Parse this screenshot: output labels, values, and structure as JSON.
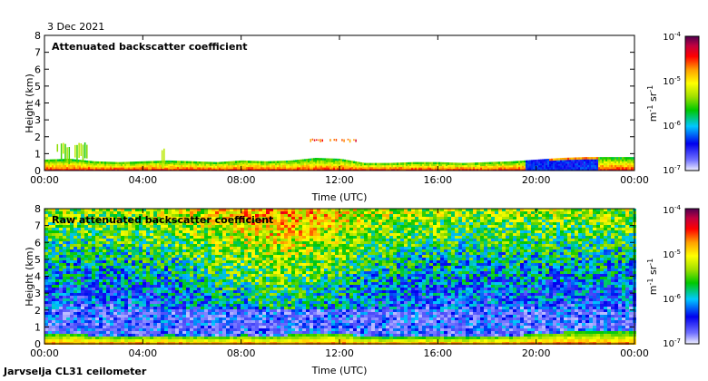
{
  "date_label": "3 Dec 2021",
  "footer_label": "Jarvselja CL31 ceilometer",
  "chart_data": [
    {
      "type": "heatmap",
      "title": "Attenuated backscatter coefficient",
      "xlabel": "Time (UTC)",
      "ylabel": "Height (km)",
      "xticks": [
        "00:00",
        "04:00",
        "08:00",
        "12:00",
        "16:00",
        "20:00",
        "00:00"
      ],
      "yticks": [
        "0",
        "1",
        "2",
        "3",
        "4",
        "5",
        "6",
        "7",
        "8"
      ],
      "xlim_hours": [
        0,
        24
      ],
      "ylim_km": [
        0,
        8
      ],
      "colorbar": {
        "scale": "log",
        "ticks": [
          {
            "base": "10",
            "exp": "-4"
          },
          {
            "base": "10",
            "exp": "-5"
          },
          {
            "base": "10",
            "exp": "-6"
          },
          {
            "base": "10",
            "exp": "-7"
          }
        ],
        "unit_base_1": "m",
        "unit_exp_1": "-1",
        "unit_base_2": " sr",
        "unit_exp_2": "-1",
        "range": [
          1e-07,
          0.0001
        ]
      },
      "boundary_layer_top_km": [
        [
          0,
          0.65
        ],
        [
          1,
          0.7
        ],
        [
          2,
          0.55
        ],
        [
          3,
          0.5
        ],
        [
          4,
          0.55
        ],
        [
          5,
          0.6
        ],
        [
          6,
          0.55
        ],
        [
          7,
          0.5
        ],
        [
          8,
          0.6
        ],
        [
          9,
          0.55
        ],
        [
          10,
          0.6
        ],
        [
          11,
          0.75
        ],
        [
          12,
          0.7
        ],
        [
          13,
          0.45
        ],
        [
          14,
          0.45
        ],
        [
          15,
          0.5
        ],
        [
          16,
          0.5
        ],
        [
          17,
          0.45
        ],
        [
          18,
          0.5
        ],
        [
          19,
          0.55
        ],
        [
          20,
          0.65
        ],
        [
          21,
          0.75
        ],
        [
          22,
          0.8
        ],
        [
          23,
          0.8
        ],
        [
          24,
          0.8
        ]
      ],
      "elevated_layers": [
        {
          "t_start": 0.5,
          "t_end": 1.8,
          "h_bottom_km": 0.6,
          "h_top_km": 1.7
        },
        {
          "t_start": 4.6,
          "t_end": 4.9,
          "h_bottom_km": 0.1,
          "h_top_km": 1.5
        },
        {
          "t_start": 10.8,
          "t_end": 11.5,
          "h_bottom_km": 1.7,
          "h_top_km": 1.9
        },
        {
          "t_start": 11.6,
          "t_end": 12.9,
          "h_bottom_km": 1.7,
          "h_top_km": 1.9
        }
      ]
    },
    {
      "type": "heatmap",
      "title": "Raw attenuated backscatter coefficient",
      "xlabel": "Time (UTC)",
      "ylabel": "Height (km)",
      "xticks": [
        "00:00",
        "04:00",
        "08:00",
        "12:00",
        "16:00",
        "20:00",
        "00:00"
      ],
      "yticks": [
        "0",
        "1",
        "2",
        "3",
        "4",
        "5",
        "6",
        "7",
        "8"
      ],
      "xlim_hours": [
        0,
        24
      ],
      "ylim_km": [
        0,
        8
      ],
      "colorbar": {
        "scale": "log",
        "ticks": [
          {
            "base": "10",
            "exp": "-4"
          },
          {
            "base": "10",
            "exp": "-5"
          },
          {
            "base": "10",
            "exp": "-6"
          },
          {
            "base": "10",
            "exp": "-7"
          }
        ],
        "unit_base_1": "m",
        "unit_exp_1": "-1",
        "unit_base_2": " sr",
        "unit_exp_2": "-1",
        "range": [
          1e-07,
          0.0001
        ]
      }
    }
  ]
}
